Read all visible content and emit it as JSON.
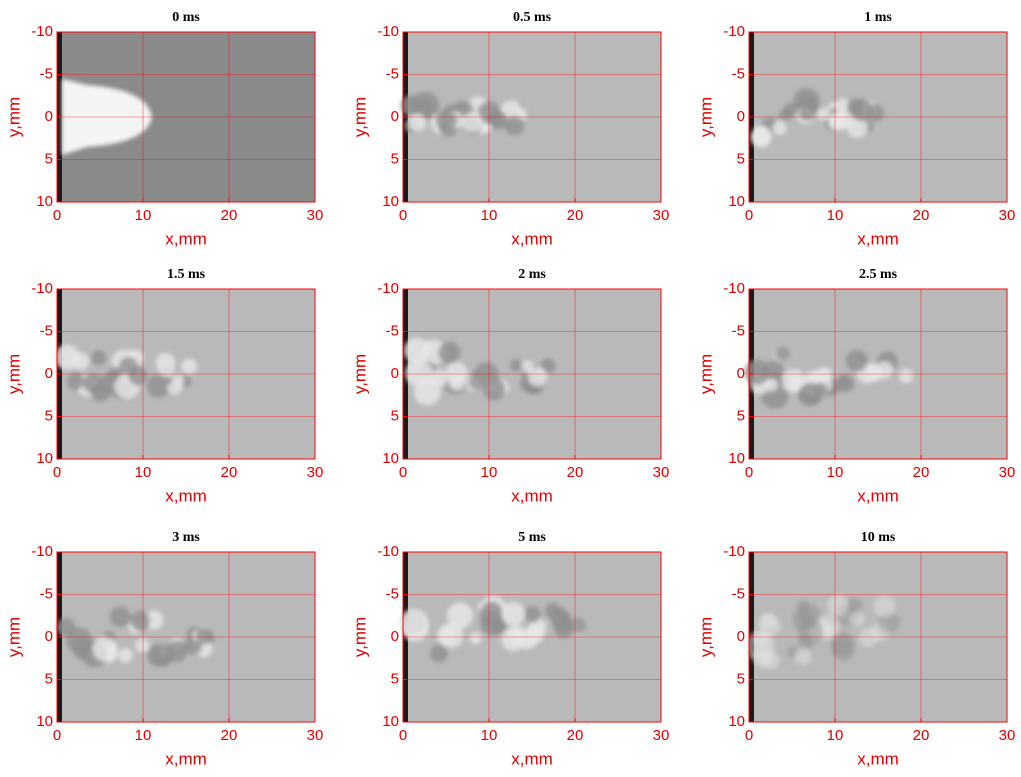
{
  "chart_data": [
    {
      "type": "image",
      "title": "0 ms",
      "xlabel": "x,mm",
      "ylabel": "y,mm",
      "xlim": [
        0,
        30
      ],
      "ylim": [
        -10,
        10
      ],
      "xticks": [
        0,
        10,
        20,
        30
      ],
      "yticks": [
        -10,
        -5,
        0,
        5,
        10
      ],
      "y_inverted": true,
      "grid": true,
      "color": "#ff0000"
    },
    {
      "type": "image",
      "title": "0.5 ms",
      "xlabel": "x,mm",
      "ylabel": "y,mm",
      "xlim": [
        0,
        30
      ],
      "ylim": [
        -10,
        10
      ],
      "xticks": [
        0,
        10,
        20,
        30
      ],
      "yticks": [
        -10,
        -5,
        0,
        5,
        10
      ],
      "y_inverted": true,
      "grid": true,
      "color": "#ff0000"
    },
    {
      "type": "image",
      "title": "1 ms",
      "xlabel": "x,mm",
      "ylabel": "y,mm",
      "xlim": [
        0,
        30
      ],
      "ylim": [
        -10,
        10
      ],
      "xticks": [
        0,
        10,
        20,
        30
      ],
      "yticks": [
        -10,
        -5,
        0,
        5,
        10
      ],
      "y_inverted": true,
      "grid": true,
      "color": "#ff0000"
    },
    {
      "type": "image",
      "title": "1.5 ms",
      "xlabel": "x,mm",
      "ylabel": "y,mm",
      "xlim": [
        0,
        30
      ],
      "ylim": [
        -10,
        10
      ],
      "xticks": [
        0,
        10,
        20,
        30
      ],
      "yticks": [
        -10,
        -5,
        0,
        5,
        10
      ],
      "y_inverted": true,
      "grid": true,
      "color": "#ff0000"
    },
    {
      "type": "image",
      "title": "2 ms",
      "xlabel": "x,mm",
      "ylabel": "y,mm",
      "xlim": [
        0,
        30
      ],
      "ylim": [
        -10,
        10
      ],
      "xticks": [
        0,
        10,
        20,
        30
      ],
      "yticks": [
        -10,
        -5,
        0,
        5,
        10
      ],
      "y_inverted": true,
      "grid": true,
      "color": "#ff0000"
    },
    {
      "type": "image",
      "title": "2.5 ms",
      "xlabel": "x,mm",
      "ylabel": "y,mm",
      "xlim": [
        0,
        30
      ],
      "ylim": [
        -10,
        10
      ],
      "xticks": [
        0,
        10,
        20,
        30
      ],
      "yticks": [
        -10,
        -5,
        0,
        5,
        10
      ],
      "y_inverted": true,
      "grid": true,
      "color": "#ff0000"
    },
    {
      "type": "image",
      "title": "3 ms",
      "xlabel": "x,mm",
      "ylabel": "y,mm",
      "xlim": [
        0,
        30
      ],
      "ylim": [
        -10,
        10
      ],
      "xticks": [
        0,
        10,
        20,
        30
      ],
      "yticks": [
        -10,
        -5,
        0,
        5,
        10
      ],
      "y_inverted": true,
      "grid": true,
      "color": "#ff0000"
    },
    {
      "type": "image",
      "title": "5 ms",
      "xlabel": "x,mm",
      "ylabel": "y,mm",
      "xlim": [
        0,
        30
      ],
      "ylim": [
        -10,
        10
      ],
      "xticks": [
        0,
        10,
        20,
        30
      ],
      "yticks": [
        -10,
        -5,
        0,
        5,
        10
      ],
      "y_inverted": true,
      "grid": true,
      "color": "#ff0000"
    },
    {
      "type": "image",
      "title": "10 ms",
      "xlabel": "x,mm",
      "ylabel": "y,mm",
      "xlim": [
        0,
        30
      ],
      "ylim": [
        -10,
        10
      ],
      "xticks": [
        0,
        10,
        20,
        30
      ],
      "yticks": [
        -10,
        -5,
        0,
        5,
        10
      ],
      "y_inverted": true,
      "grid": true,
      "color": "#ff0000"
    }
  ]
}
